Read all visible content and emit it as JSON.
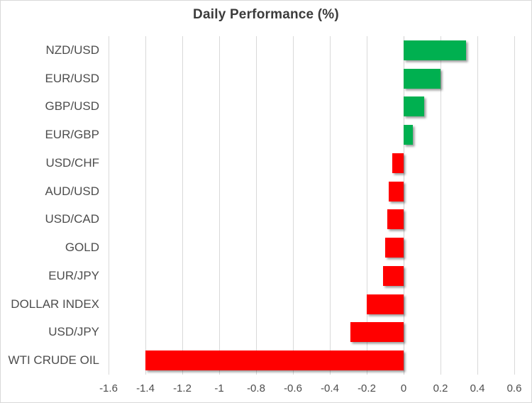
{
  "chart_data": {
    "type": "bar",
    "orientation": "horizontal",
    "title": "Daily Performance (%)",
    "categories": [
      "NZD/USD",
      "EUR/USD",
      "GBP/USD",
      "EUR/GBP",
      "USD/CHF",
      "AUD/USD",
      "USD/CAD",
      "GOLD",
      "EUR/JPY",
      "DOLLAR INDEX",
      "USD/JPY",
      "WTI CRUDE OIL"
    ],
    "values": [
      0.34,
      0.2,
      0.11,
      0.05,
      -0.06,
      -0.08,
      -0.09,
      -0.1,
      -0.11,
      -0.2,
      -0.29,
      -1.4
    ],
    "xlabel": "",
    "ylabel": "",
    "xlim": [
      -1.6,
      0.6
    ],
    "x_tick_step": 0.2,
    "x_tick_labels": [
      "-1.6",
      "-1.4",
      "-1.2",
      "-1",
      "-0.8",
      "-0.6",
      "-0.4",
      "-0.2",
      "0",
      "0.2",
      "0.4",
      "0.6"
    ],
    "grid": true,
    "legend_position": "none",
    "colors": {
      "positive_bar": "#00b050",
      "negative_bar": "#ff0000",
      "gridline": "#d9d9d9",
      "axis_line": "#d0d0d0",
      "title_text": "#3b3b3b",
      "label_text": "#4d4d4d",
      "background": "#ffffff",
      "chart_border": "#d9d9d9"
    }
  }
}
